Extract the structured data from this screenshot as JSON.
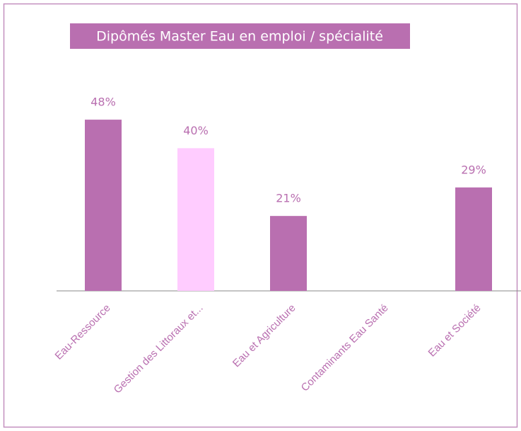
{
  "chart_data": {
    "type": "bar",
    "title": "Dipômés Master Eau en emploi / spécialité",
    "categories": [
      "Eau-Ressource",
      "Gestion des Littoraux et...",
      "Eau et Agriculture",
      "Contaminants Eau Santé",
      "Eau et Société"
    ],
    "values": [
      48,
      40,
      21,
      null,
      29
    ],
    "value_labels": [
      "48%",
      "40%",
      "21%",
      null,
      "29%"
    ],
    "colors": [
      "#b96fb0",
      "#ffccff",
      "#b96fb0",
      "#b96fb0",
      "#b96fb0"
    ],
    "label_color": "#b96fb0"
  }
}
